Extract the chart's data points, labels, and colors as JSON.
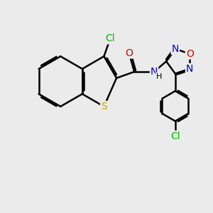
{
  "bg_color": "#ebebeb",
  "bond_color": "#000000",
  "bond_width": 1.8,
  "dbo": 0.08,
  "atom_colors": {
    "Cl": "#00bb00",
    "O": "#dd0000",
    "N": "#0000cc",
    "S": "#bbaa00"
  },
  "figsize": [
    3.0,
    3.0
  ],
  "dpi": 100
}
